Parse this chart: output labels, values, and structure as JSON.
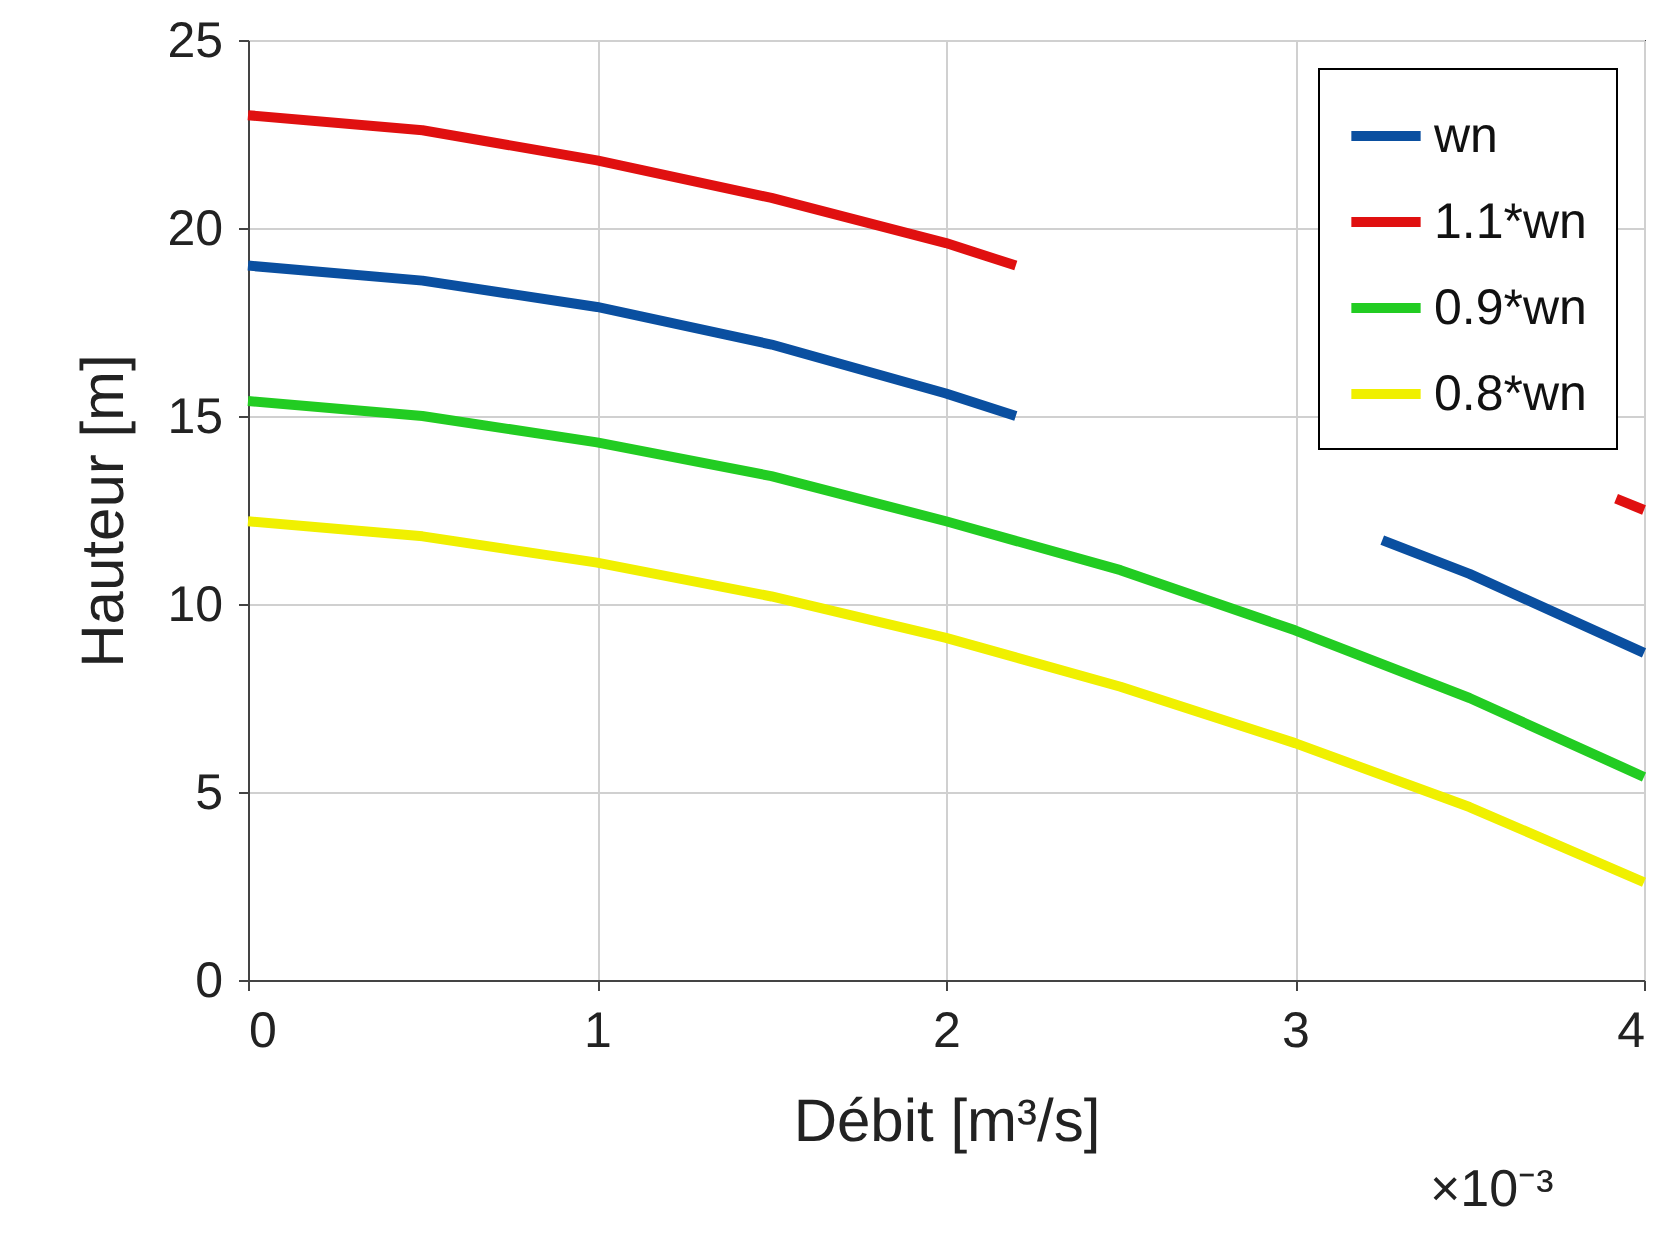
{
  "chart_data": {
    "type": "line",
    "xlabel": "Débit [m³/s]",
    "ylabel": "Hauteur [m]",
    "annotations": [
      "×10⁻³"
    ],
    "xlim": [
      0,
      4
    ],
    "xticks": [
      0,
      1,
      2,
      3,
      4
    ],
    "ylim": [
      0,
      25
    ],
    "yticks": [
      0,
      5,
      10,
      15,
      20,
      25
    ],
    "grid": true,
    "legend": "top right",
    "line_style": "solid",
    "marker": "none",
    "series": [
      {
        "name": "wn",
        "color": "#0a4fa0",
        "x": [
          0,
          0.5,
          1,
          1.5,
          2,
          2.2,
          2.5,
          3,
          3.25,
          3.5,
          4
        ],
        "values": [
          19.0,
          18.6,
          17.9,
          16.9,
          15.6,
          15.0,
          null,
          null,
          11.7,
          10.8,
          8.7
        ]
      },
      {
        "name": "1.1*wn",
        "color": "#e01010",
        "x": [
          0,
          0.5,
          1,
          1.5,
          2,
          2.2,
          2.5,
          3,
          3.5,
          3.92,
          4
        ],
        "values": [
          23.0,
          22.6,
          21.8,
          20.8,
          19.6,
          19.0,
          null,
          null,
          null,
          12.8,
          12.5
        ]
      },
      {
        "name": "0.9*wn",
        "color": "#22cc22",
        "x": [
          0,
          0.5,
          1,
          1.5,
          2,
          2.5,
          3,
          3.5,
          4
        ],
        "values": [
          15.4,
          15.0,
          14.3,
          13.4,
          12.2,
          10.9,
          9.3,
          7.5,
          5.4
        ]
      },
      {
        "name": "0.8*wn",
        "color": "#f0f000",
        "x": [
          0,
          0.5,
          1,
          1.5,
          2,
          2.5,
          3,
          3.5,
          4
        ],
        "values": [
          12.2,
          11.8,
          11.1,
          10.2,
          9.1,
          7.8,
          6.3,
          4.6,
          2.6
        ]
      }
    ]
  }
}
